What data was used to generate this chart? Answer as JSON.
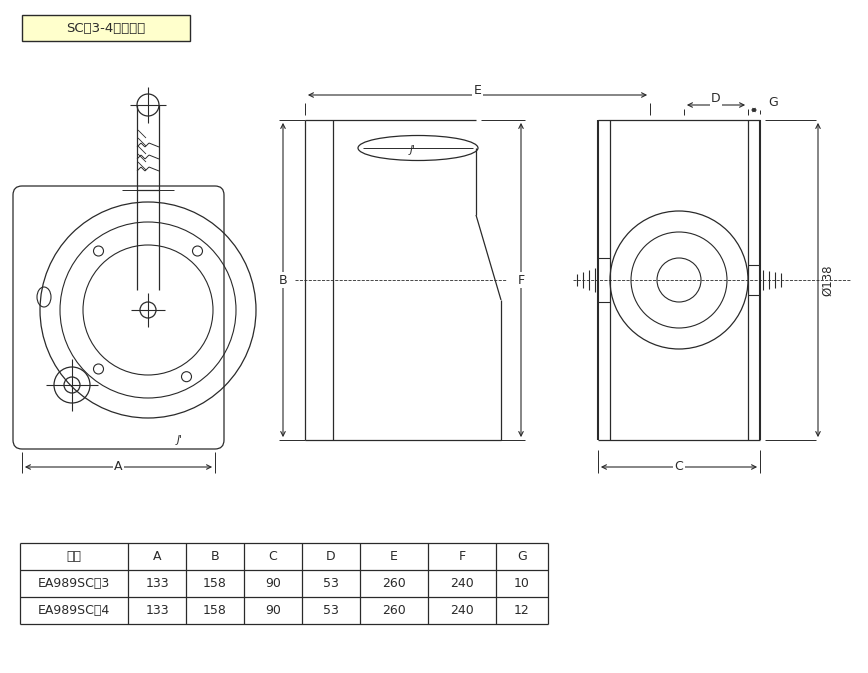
{
  "title": "SC－3-4　詳細図",
  "title_bg": "#ffffcc",
  "bg_color": "#ffffff",
  "line_color": "#2a2a2a",
  "table_headers": [
    "品番",
    "A",
    "B",
    "C",
    "D",
    "E",
    "F",
    "G"
  ],
  "table_rows": [
    [
      "EA989SC－3",
      "133",
      "158",
      "90",
      "53",
      "260",
      "240",
      "10"
    ],
    [
      "EA989SC－4",
      "133",
      "158",
      "90",
      "53",
      "260",
      "240",
      "12"
    ]
  ],
  "fig_width": 8.68,
  "fig_height": 6.73
}
